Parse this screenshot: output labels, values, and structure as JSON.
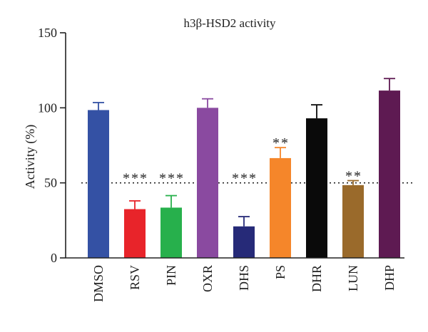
{
  "chart_data": {
    "type": "bar",
    "title": "h3β-HSD2 activity",
    "xlabel": "",
    "ylabel": "Activity (%)",
    "ylim": [
      0,
      150
    ],
    "yticks": [
      0,
      50,
      100,
      150
    ],
    "reference_line": 50,
    "categories": [
      "DMSO",
      "RSV",
      "PIN",
      "OXR",
      "DHS",
      "PS",
      "DHR",
      "LUN",
      "DHP"
    ],
    "values": [
      98.5,
      32.5,
      33.5,
      100,
      21,
      66.5,
      93,
      48.5,
      111.5
    ],
    "errors": [
      5,
      5.5,
      8,
      6,
      6.5,
      7,
      9,
      3,
      8
    ],
    "annotations": [
      "",
      "***",
      "***",
      "",
      "***",
      "**",
      "",
      "**",
      ""
    ],
    "colors": [
      "#3451a4",
      "#e8242a",
      "#27b04c",
      "#8a4aa0",
      "#262a78",
      "#f5862a",
      "#0a0a0a",
      "#9a6a2b",
      "#5e1a52"
    ]
  }
}
